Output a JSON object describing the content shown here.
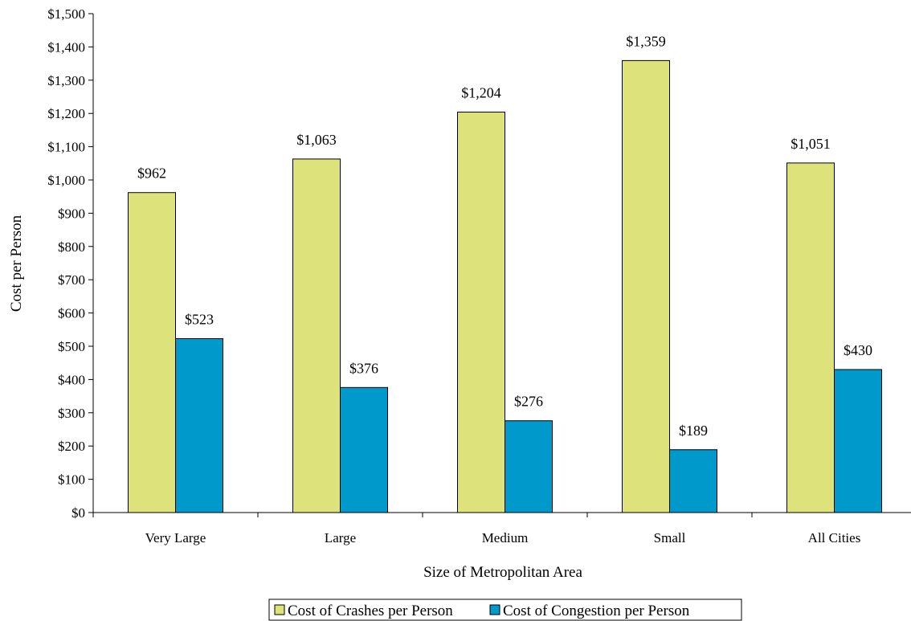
{
  "chart_data": {
    "type": "bar",
    "categories": [
      "Very Large",
      "Large",
      "Medium",
      "Small",
      "All Cities"
    ],
    "series": [
      {
        "name": "Cost of Crashes per Person",
        "values": [
          962,
          1063,
          1204,
          1359,
          1051
        ],
        "labels": [
          "$962",
          "$1,063",
          "$1,204",
          "$1,359",
          "$1,051"
        ],
        "color": "#dde27a"
      },
      {
        "name": "Cost of Congestion per Person",
        "values": [
          523,
          376,
          276,
          189,
          430
        ],
        "labels": [
          "$523",
          "$376",
          "$276",
          "$189",
          "$430"
        ],
        "color": "#0099cc"
      }
    ],
    "xlabel": "Size of Metropolitan Area",
    "ylabel": "Cost per Person",
    "ylim": [
      0,
      1500
    ],
    "yticks": [
      0,
      100,
      200,
      300,
      400,
      500,
      600,
      700,
      800,
      900,
      1000,
      1100,
      1200,
      1300,
      1400,
      1500
    ],
    "ytick_labels": [
      "$0",
      "$100",
      "$200",
      "$300",
      "$400",
      "$500",
      "$600",
      "$700",
      "$800",
      "$900",
      "$1,000",
      "$1,100",
      "$1,200",
      "$1,300",
      "$1,400",
      "$1,500"
    ],
    "grid": false,
    "legend_position": "bottom"
  }
}
